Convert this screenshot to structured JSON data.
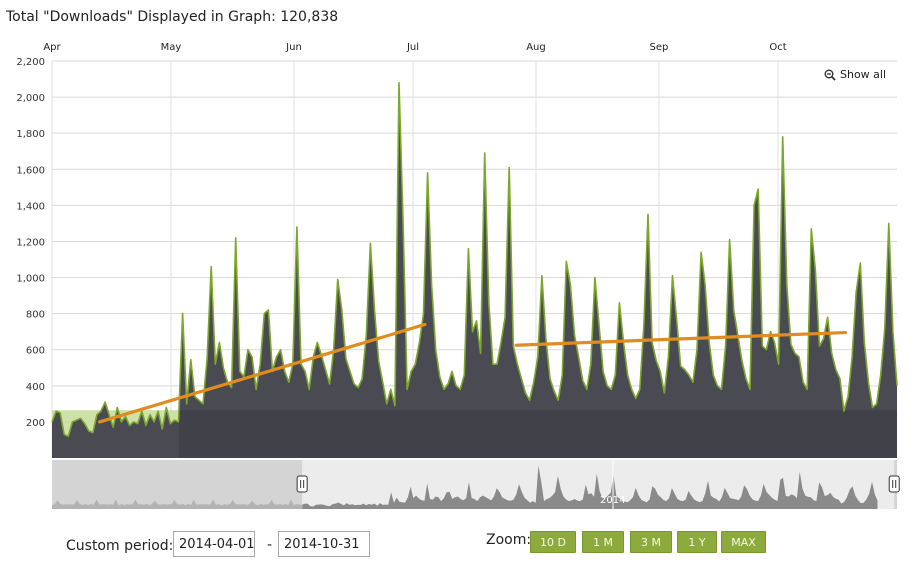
{
  "header": {
    "title": "Total \"Downloads\" Displayed in Graph: 120,838"
  },
  "chart_data": {
    "type": "area",
    "title": "Total \"Downloads\" Displayed in Graph: 120,838",
    "x_start": "2014-04-01",
    "x_end": "2014-10-31",
    "month_labels": [
      "Apr",
      "May",
      "Jun",
      "Jul",
      "Aug",
      "Sep",
      "Oct"
    ],
    "month_starts": [
      "2014-04-01",
      "2014-05-01",
      "2014-06-01",
      "2014-07-01",
      "2014-08-01",
      "2014-09-01",
      "2014-10-01"
    ],
    "y_ticks": [
      "200",
      "400",
      "600",
      "800",
      "1,000",
      "1,200",
      "1,400",
      "1,600",
      "1,800",
      "2,000",
      "2,200"
    ],
    "y_tick_values": [
      200,
      400,
      600,
      800,
      1000,
      1200,
      1400,
      1600,
      1800,
      2000,
      2200
    ],
    "ylim": [
      0,
      2200
    ],
    "grid": true,
    "colors": {
      "area_fill": "#4a4a52",
      "area_line": "#7ca62c",
      "trend": "#e08c1e",
      "baseline_band": "#c6dc9a",
      "navigator_fill": "#b5b5b5",
      "navigator_selected": "#8a8a8a"
    },
    "series": [
      {
        "values": [
          200,
          260,
          250,
          130,
          120,
          200,
          210,
          220,
          190,
          150,
          140,
          240,
          260,
          310,
          240,
          170,
          280,
          200,
          230,
          180,
          200,
          190,
          260,
          180,
          240,
          200,
          260,
          160,
          280,
          190,
          210,
          200,
          800,
          300,
          545,
          340,
          320,
          300,
          550,
          1060,
          520,
          640,
          500,
          420,
          390,
          1220,
          480,
          450,
          600,
          560,
          380,
          520,
          800,
          820,
          480,
          560,
          600,
          480,
          420,
          520,
          1280,
          520,
          480,
          380,
          560,
          640,
          570,
          490,
          410,
          600,
          990,
          820,
          550,
          480,
          410,
          390,
          440,
          680,
          1190,
          820,
          540,
          420,
          300,
          380,
          290,
          2080,
          1300,
          380,
          480,
          520,
          640,
          800,
          1580,
          960,
          600,
          450,
          380,
          410,
          480,
          400,
          380,
          460,
          1160,
          700,
          760,
          580,
          1690,
          860,
          520,
          520,
          640,
          780,
          1610,
          620,
          520,
          440,
          360,
          320,
          420,
          560,
          1010,
          660,
          440,
          370,
          320,
          460,
          1090,
          960,
          680,
          560,
          430,
          380,
          520,
          1000,
          740,
          480,
          400,
          380,
          460,
          860,
          640,
          460,
          380,
          330,
          380,
          740,
          1350,
          640,
          540,
          480,
          360,
          560,
          1010,
          770,
          510,
          490,
          460,
          420,
          600,
          1140,
          960,
          640,
          460,
          400,
          380,
          620,
          1210,
          820,
          680,
          540,
          440,
          380,
          1400,
          1490,
          620,
          600,
          700,
          640,
          520,
          1780,
          960,
          630,
          580,
          560,
          420,
          380,
          1270,
          1040,
          620,
          660,
          780,
          580,
          490,
          440,
          260,
          340,
          560,
          920,
          1080,
          640,
          420,
          280,
          300,
          460,
          720,
          1300,
          700,
          400
        ]
      }
    ],
    "trend_lines": [
      {
        "from": [
          "2014-04-13",
          200
        ],
        "to": [
          "2014-07-04",
          740
        ]
      },
      {
        "from": [
          "2014-07-27",
          625
        ],
        "to": [
          "2014-10-18",
          695
        ]
      }
    ],
    "navigator": {
      "year_label": "2014",
      "range_start": "2014-01-01",
      "range_end": "2014-11-01"
    }
  },
  "show_all": {
    "label": "Show all",
    "icon": "zoom-out-icon"
  },
  "controls": {
    "custom_period_label": "Custom period:",
    "start_date": "2014-04-01",
    "end_date": "2014-10-31",
    "separator": "-",
    "zoom_label": "Zoom:",
    "zoom_buttons": [
      "10 D",
      "1 M",
      "3 M",
      "1 Y",
      "MAX"
    ]
  }
}
